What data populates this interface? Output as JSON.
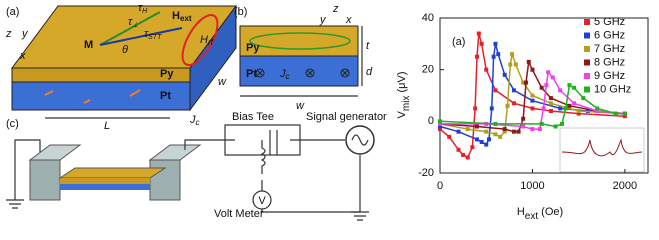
{
  "diagram_a": {
    "label": "(a)",
    "axes": [
      "z",
      "y",
      "x"
    ],
    "magnetization": "M",
    "angle": "θ",
    "field": [
      "H",
      "ext"
    ],
    "torques": [
      [
        "τ",
        "H"
      ],
      [
        "τ",
        "⊥"
      ],
      [
        "τ",
        "STT"
      ]
    ],
    "rf_field": [
      "H",
      "rf"
    ],
    "layers": [
      "Py",
      "Pt"
    ],
    "width": "w",
    "length": "L",
    "current": [
      "J",
      "c"
    ]
  },
  "diagram_b": {
    "label": "(b)",
    "axes": [
      "z",
      "y",
      "x"
    ],
    "layers": [
      "Py",
      "Pt"
    ],
    "current": [
      "J",
      "c"
    ],
    "thickness": [
      "t",
      "d"
    ],
    "width": "w"
  },
  "diagram_c": {
    "label": "(c)",
    "bias_tee": "Bias Tee",
    "generator": "Signal generator",
    "voltmeter": "Volt Meter",
    "voltmeter_symbol": "V"
  },
  "chart_data": {
    "type": "line",
    "panel_label": "(a)",
    "x_label": [
      "H",
      "ext",
      " (Oe)"
    ],
    "y_label": [
      "V",
      "mix",
      " (μV)"
    ],
    "xlim": [
      0,
      2250
    ],
    "xticks": [
      0,
      1000,
      2000
    ],
    "ylim": [
      -20,
      40
    ],
    "yticks": [
      -20,
      0,
      20,
      40
    ],
    "marker": "square",
    "legend": "upper right",
    "series": [
      {
        "name": "5 GHz",
        "color": "#e8202a",
        "x": [
          0,
          100,
          200,
          250,
          300,
          350,
          380,
          400,
          420,
          450,
          500,
          600,
          800,
          1000,
          1200,
          1500,
          2000
        ],
        "values": [
          -3,
          -6,
          -11,
          -13,
          -14,
          -10,
          5,
          25,
          34,
          30,
          20,
          12,
          7,
          5,
          4,
          3,
          2
        ]
      },
      {
        "name": "6 GHz",
        "color": "#2040d0",
        "x": [
          0,
          200,
          400,
          450,
          500,
          530,
          560,
          580,
          600,
          630,
          700,
          800,
          1000,
          1300,
          1600,
          2000
        ],
        "values": [
          -2,
          -4,
          -7,
          -8,
          -9,
          -7,
          5,
          25,
          30,
          26,
          18,
          12,
          8,
          5,
          4,
          3
        ]
      },
      {
        "name": "7 GHz",
        "color": "#b0a020",
        "x": [
          0,
          300,
          500,
          600,
          650,
          700,
          730,
          760,
          780,
          820,
          900,
          1000,
          1200,
          1500,
          2000
        ],
        "values": [
          -1,
          -3,
          -4,
          -5,
          -6,
          -4,
          6,
          22,
          26,
          22,
          15,
          10,
          7,
          4,
          3
        ]
      },
      {
        "name": "8 GHz",
        "color": "#8b1a1a",
        "x": [
          0,
          400,
          700,
          800,
          850,
          900,
          930,
          960,
          1000,
          1100,
          1200,
          1400,
          1700,
          2000
        ],
        "values": [
          -1,
          -2,
          -3,
          -4,
          -4,
          1,
          15,
          23,
          20,
          13,
          9,
          6,
          4,
          3
        ]
      },
      {
        "name": "9 GHz",
        "color": "#f040f0",
        "x": [
          0,
          500,
          900,
          1000,
          1080,
          1120,
          1150,
          1170,
          1220,
          1300,
          1450,
          1700,
          2000
        ],
        "values": [
          -1,
          -1,
          -2,
          -3,
          -3,
          5,
          14,
          19,
          17,
          12,
          7,
          4,
          3
        ]
      },
      {
        "name": "10 GHz",
        "color": "#20b020",
        "x": [
          0,
          600,
          1100,
          1250,
          1320,
          1360,
          1400,
          1450,
          1550,
          1700,
          1900,
          2000
        ],
        "values": [
          0,
          -1,
          -1,
          -2,
          -1,
          5,
          14,
          13,
          9,
          5,
          3,
          3
        ]
      }
    ]
  }
}
